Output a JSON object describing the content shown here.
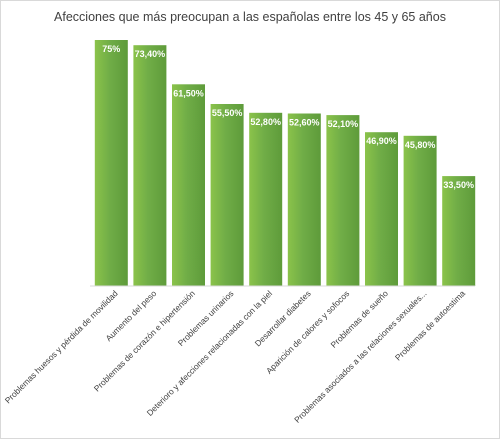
{
  "chart_data": {
    "type": "bar",
    "title": "Afecciones que más preocupan a las españolas entre los 45 y 65 años",
    "categories": [
      "Problemas huesos y pérdida de movilidad",
      "Aumento del peso",
      "Problemas de corazón e hipertensión",
      "Problemas urinarios",
      "Deterioro y afecciones relacionadas con la piel",
      "Desarrollar diabetes",
      "Aparición de calores y sofocos",
      "Problemas de sueño",
      "Problemas asociados a las relaciones sexuales...",
      "Problemas de autoestima"
    ],
    "values": [
      75,
      73.4,
      61.5,
      55.5,
      52.8,
      52.6,
      52.1,
      46.9,
      45.8,
      33.5
    ],
    "data_labels": [
      "75%",
      "73,40%",
      "61,50%",
      "55,50%",
      "52,80%",
      "52,60%",
      "52,10%",
      "46,90%",
      "45,80%",
      "33,50%"
    ],
    "ylim": [
      0,
      75
    ],
    "grid": false,
    "legend": "none",
    "bar_color": "#70ad47",
    "bar_color_light": "#8bc34a",
    "bar_color_dark": "#5e9b3a"
  }
}
